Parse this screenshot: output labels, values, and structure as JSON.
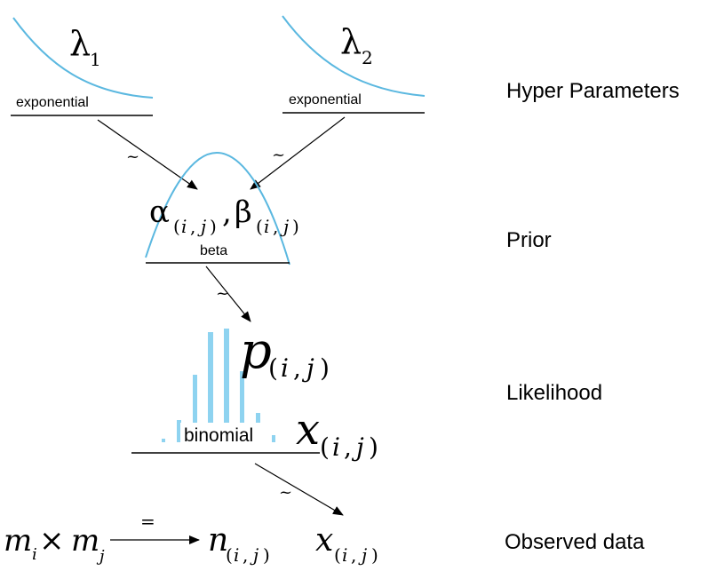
{
  "hyperparameters": {
    "lambda1": {
      "symbol": "λ",
      "sub": "1",
      "dist": "exponential"
    },
    "lambda2": {
      "symbol": "λ",
      "sub": "2",
      "dist": "exponential"
    }
  },
  "prior": {
    "alpha": "α",
    "beta_sym": "β",
    "separator": ",",
    "sub_open": "(",
    "sub_i": "i",
    "sub_comma": ",",
    "sub_j": "j",
    "sub_close": ")",
    "dist": "beta"
  },
  "likelihood": {
    "p": "p",
    "x": "x",
    "dist": "binomial"
  },
  "observed": {
    "m": "m",
    "m_sub_i": "i",
    "times": "×",
    "m_sub_j": "j",
    "equals": "=",
    "n": "n",
    "x": "x"
  },
  "tilde": "~",
  "levels": {
    "hyper": "Hyper Parameters",
    "prior": "Prior",
    "likelihood": "Likelihood",
    "observed": "Observed data"
  },
  "colors": {
    "curve": "#5bb8e0",
    "bars": "#8ed3f0",
    "line": "#000000"
  }
}
